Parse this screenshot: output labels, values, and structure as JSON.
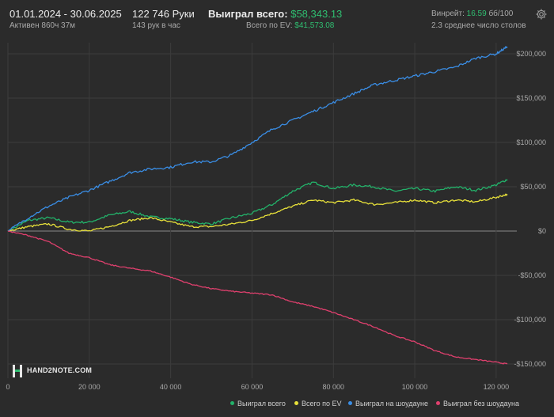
{
  "header": {
    "date_range": "01.01.2024 - 30.06.2025",
    "active_time": "Активен 860ч 37м",
    "hands": "122 746 Руки",
    "hands_per_hour": "143 рук в час",
    "won_total_label": "Выиграл всего:",
    "won_total_value": "$58,343.13",
    "ev_label": "Всего по EV:",
    "ev_value": "$41,573.08",
    "winrate_label": "Винрейт:",
    "winrate_value": "16.59",
    "winrate_unit": "бб/100",
    "avg_tables": "2.3 среднее число столов",
    "settings_icon": "gear-icon"
  },
  "logo": {
    "text": "HAND2NOTE.COM"
  },
  "colors": {
    "background": "#2b2b2b",
    "grid": "#3c3c3c",
    "zero_line": "#8a8a8a",
    "won_total": "#23b26a",
    "ev": "#e8e13a",
    "showdown": "#3a8ee6",
    "non_showdown": "#e0406e",
    "accent_green": "#2fbf71"
  },
  "chart_data": {
    "type": "line",
    "x_ticks": [
      0,
      20000,
      40000,
      60000,
      80000,
      100000,
      120000
    ],
    "x_tick_labels": [
      "0",
      "20 000",
      "40 000",
      "60 000",
      "80 000",
      "100 000",
      "120 000"
    ],
    "y_ticks": [
      200000,
      150000,
      100000,
      50000,
      0,
      -50000,
      -100000,
      -150000
    ],
    "y_tick_labels": [
      "$200,000",
      "$150,000",
      "$100,000",
      "$50,000",
      "$0",
      "-$50,000",
      "-$100,000",
      "-$150,000"
    ],
    "xlim": [
      0,
      122746
    ],
    "ylim": [
      -150000,
      200000
    ],
    "grid": true,
    "legend_position": "bottom-right",
    "x_step": 5000,
    "series": [
      {
        "name": "Выиграл всего",
        "color": "#23b26a",
        "x": [
          0,
          5000,
          10000,
          15000,
          20000,
          25000,
          30000,
          35000,
          40000,
          45000,
          50000,
          55000,
          60000,
          65000,
          70000,
          75000,
          80000,
          85000,
          90000,
          95000,
          100000,
          105000,
          110000,
          115000,
          120000,
          122746
        ],
        "y": [
          0,
          12000,
          15000,
          10000,
          10000,
          18000,
          22000,
          16000,
          14000,
          10000,
          8000,
          15000,
          20000,
          30000,
          45000,
          55000,
          48000,
          52000,
          50000,
          45000,
          48000,
          45000,
          50000,
          46000,
          52000,
          58343
        ]
      },
      {
        "name": "Всего по EV",
        "color": "#e8e13a",
        "x": [
          0,
          5000,
          10000,
          15000,
          20000,
          25000,
          30000,
          35000,
          40000,
          45000,
          50000,
          55000,
          60000,
          65000,
          70000,
          75000,
          80000,
          85000,
          90000,
          95000,
          100000,
          105000,
          110000,
          115000,
          120000,
          122746
        ],
        "y": [
          0,
          5000,
          8000,
          2000,
          0,
          5000,
          12000,
          15000,
          10000,
          5000,
          5000,
          8000,
          12000,
          20000,
          28000,
          35000,
          32000,
          35000,
          30000,
          32000,
          35000,
          32000,
          35000,
          33000,
          38000,
          41573
        ]
      },
      {
        "name": "Выиграл на шоудауне",
        "color": "#3a8ee6",
        "x": [
          0,
          5000,
          10000,
          15000,
          20000,
          25000,
          30000,
          35000,
          40000,
          45000,
          50000,
          55000,
          60000,
          65000,
          70000,
          75000,
          80000,
          85000,
          90000,
          95000,
          100000,
          105000,
          110000,
          115000,
          120000,
          122746
        ],
        "y": [
          0,
          15000,
          28000,
          38000,
          46000,
          56000,
          66000,
          70000,
          72000,
          78000,
          78000,
          86000,
          100000,
          115000,
          125000,
          135000,
          145000,
          155000,
          165000,
          170000,
          175000,
          180000,
          185000,
          195000,
          200000,
          208000
        ]
      },
      {
        "name": "Выиграл без шоудауна",
        "color": "#e0406e",
        "x": [
          0,
          5000,
          10000,
          15000,
          20000,
          25000,
          30000,
          35000,
          40000,
          45000,
          50000,
          55000,
          60000,
          65000,
          70000,
          75000,
          80000,
          85000,
          90000,
          95000,
          100000,
          105000,
          110000,
          115000,
          120000,
          122746
        ],
        "y": [
          0,
          -5000,
          -12000,
          -25000,
          -30000,
          -38000,
          -42000,
          -45000,
          -52000,
          -60000,
          -65000,
          -68000,
          -70000,
          -72000,
          -80000,
          -85000,
          -92000,
          -100000,
          -108000,
          -118000,
          -125000,
          -135000,
          -142000,
          -145000,
          -148000,
          -150000
        ]
      }
    ]
  }
}
